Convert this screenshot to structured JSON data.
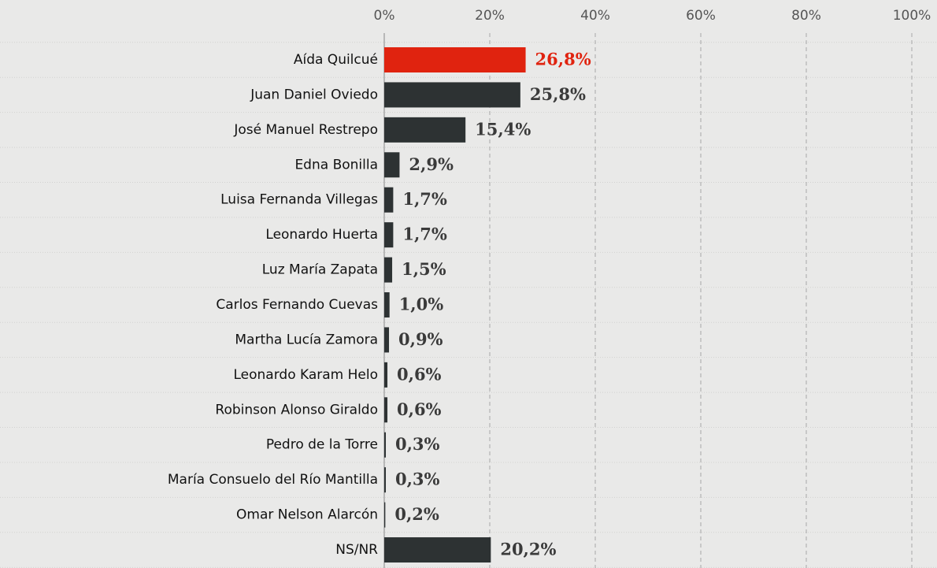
{
  "chart_data": {
    "type": "bar",
    "orientation": "horizontal",
    "categories": [
      "Aída Quilcué",
      "Juan Daniel Oviedo",
      "José Manuel Restrepo",
      "Edna Bonilla",
      "Luisa Fernanda Villegas",
      "Leonardo Huerta",
      "Luz María Zapata",
      "Carlos Fernando Cuevas",
      "Martha Lucía Zamora",
      "Leonardo Karam Helo",
      "Robinson Alonso Giraldo",
      "Pedro de la Torre",
      "María Consuelo del Río Mantilla",
      "Omar Nelson Alarcón",
      "NS/NR"
    ],
    "values": [
      26.8,
      25.8,
      15.4,
      2.9,
      1.7,
      1.7,
      1.5,
      1.0,
      0.9,
      0.6,
      0.6,
      0.3,
      0.3,
      0.2,
      20.2
    ],
    "value_labels": [
      "26,8%",
      "25,8%",
      "15,4%",
      "2,9%",
      "1,7%",
      "1,7%",
      "1,5%",
      "1,0%",
      "0,9%",
      "0,6%",
      "0,6%",
      "0,3%",
      "0,3%",
      "0,2%",
      "20,2%"
    ],
    "colors": [
      "#e0230f",
      "#2d3233",
      "#2d3233",
      "#2d3233",
      "#2d3233",
      "#2d3233",
      "#2d3233",
      "#2d3233",
      "#2d3233",
      "#2d3233",
      "#2d3233",
      "#2d3233",
      "#2d3233",
      "#2d3233",
      "#2d3233"
    ],
    "label_colors": [
      "#e0230f",
      "#3a3a3a",
      "#3a3a3a",
      "#3a3a3a",
      "#3a3a3a",
      "#3a3a3a",
      "#3a3a3a",
      "#3a3a3a",
      "#3a3a3a",
      "#3a3a3a",
      "#3a3a3a",
      "#3a3a3a",
      "#3a3a3a",
      "#3a3a3a",
      "#3a3a3a"
    ],
    "xlim": [
      0,
      100
    ],
    "xticks": [
      {
        "value": 0,
        "label": "0%"
      },
      {
        "value": 20,
        "label": "20%"
      },
      {
        "value": 40,
        "label": "40%"
      },
      {
        "value": 60,
        "label": "60%"
      },
      {
        "value": 80,
        "label": "80%"
      },
      {
        "value": 100,
        "label": "100%"
      }
    ],
    "grid": true
  }
}
